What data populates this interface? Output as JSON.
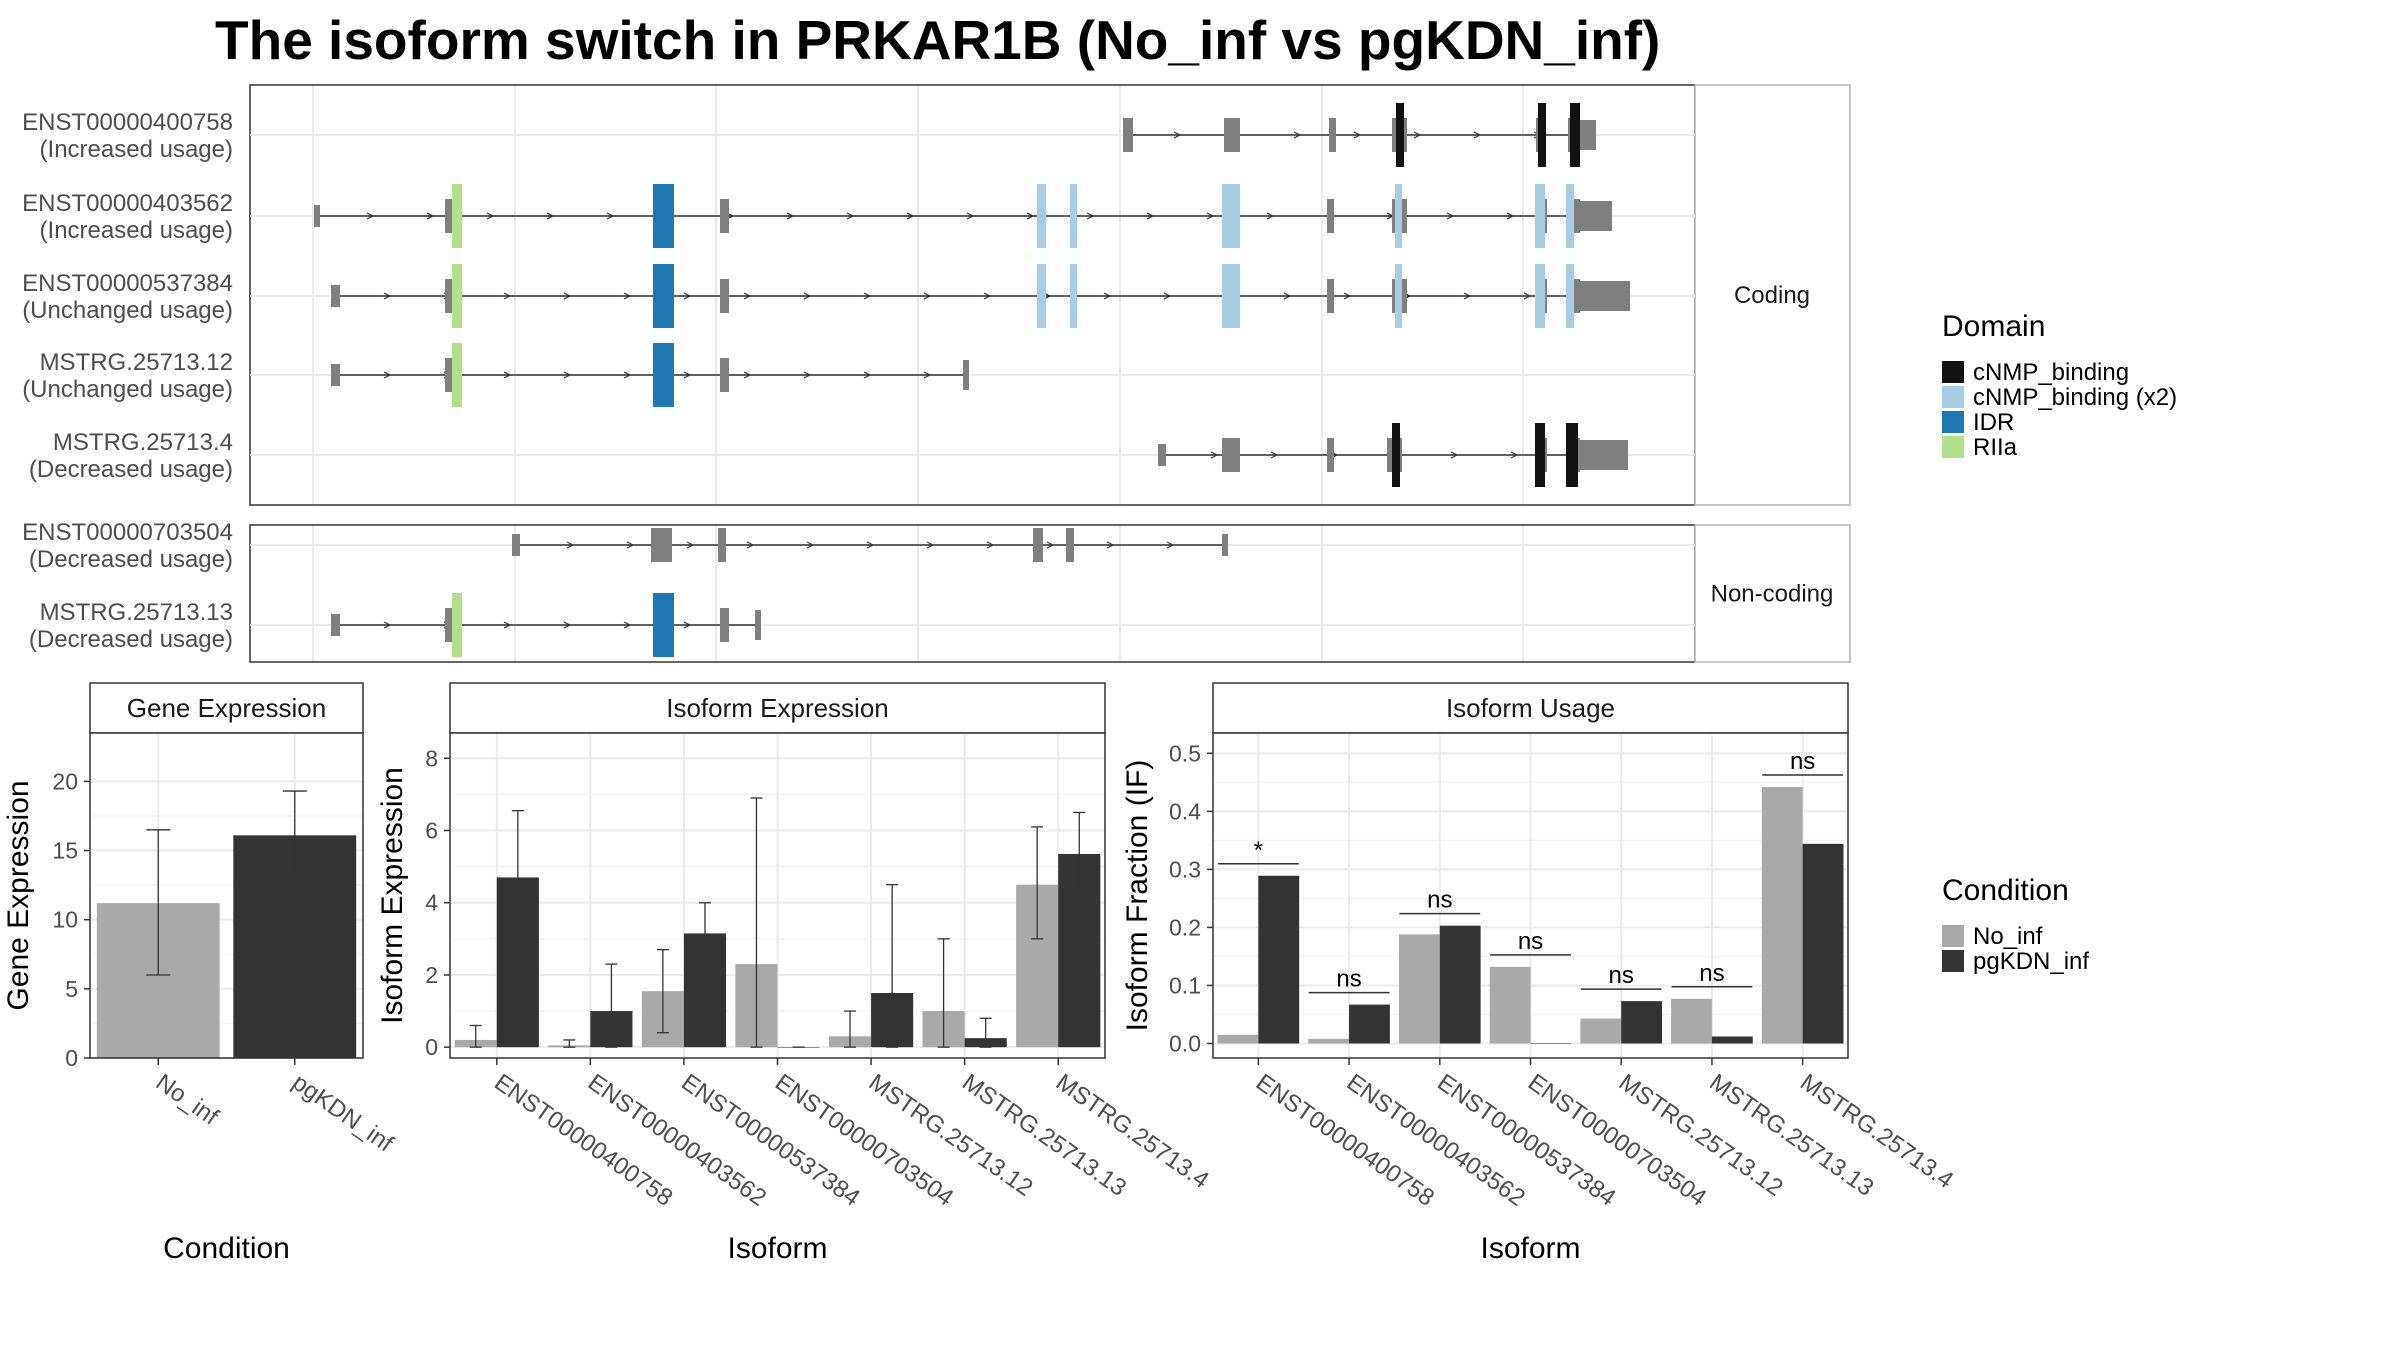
{
  "title": "The isoform switch in PRKAR1B (No_inf vs pgKDN_inf)",
  "colors": {
    "cNMP_binding": "#111111",
    "cNMP_binding_x2": "#a6cee3",
    "IDR": "#1f78b4",
    "RIIa": "#b2df8a",
    "exon": "#7f7f7f",
    "No_inf": "#a9a9a9",
    "pgKDN_inf": "#333333"
  },
  "structure": {
    "facets": [
      "Coding",
      "Non-coding"
    ],
    "transcripts": [
      {
        "id": "ENST00000400758",
        "usage": "(Increased usage)",
        "group": "Coding"
      },
      {
        "id": "ENST00000403562",
        "usage": "(Increased usage)",
        "group": "Coding"
      },
      {
        "id": "ENST00000537384",
        "usage": "(Unchanged usage)",
        "group": "Coding"
      },
      {
        "id": "MSTRG.25713.12",
        "usage": "(Unchanged usage)",
        "group": "Coding"
      },
      {
        "id": "MSTRG.25713.4",
        "usage": "(Decreased usage)",
        "group": "Coding"
      },
      {
        "id": "ENST00000703504",
        "usage": "(Decreased usage)",
        "group": "Non-coding"
      },
      {
        "id": "MSTRG.25713.13",
        "usage": "(Decreased usage)",
        "group": "Non-coding"
      }
    ]
  },
  "legend_domain": {
    "title": "Domain",
    "items": [
      {
        "label": "cNMP_binding",
        "color": "#111111"
      },
      {
        "label": "cNMP_binding (x2)",
        "color": "#a6cee3"
      },
      {
        "label": "IDR",
        "color": "#1f78b4"
      },
      {
        "label": "RIIa",
        "color": "#b2df8a"
      }
    ]
  },
  "legend_condition": {
    "title": "Condition",
    "items": [
      {
        "label": "No_inf",
        "color": "#a9a9a9"
      },
      {
        "label": "pgKDN_inf",
        "color": "#333333"
      }
    ]
  },
  "chart_data": [
    {
      "type": "bar",
      "title": "Gene Expression",
      "xlabel": "Condition",
      "ylabel": "Gene Expression",
      "categories": [
        "No_inf",
        "pgKDN_inf"
      ],
      "values": [
        11.2,
        16.1
      ],
      "errors": [
        [
          6.0,
          16.5
        ],
        [
          13.0,
          19.3
        ]
      ],
      "colors": [
        "#a9a9a9",
        "#333333"
      ],
      "ylim": [
        0,
        23.5
      ],
      "yticks": [
        0,
        5,
        10,
        15,
        20
      ]
    },
    {
      "type": "bar",
      "title": "Isoform Expression",
      "xlabel": "Isoform",
      "ylabel": "Isoform Expression",
      "categories": [
        "ENST00000400758",
        "ENST00000403562",
        "ENST00000537384",
        "ENST00000703504",
        "MSTRG.25713.12",
        "MSTRG.25713.13",
        "MSTRG.25713.4"
      ],
      "series": [
        {
          "name": "No_inf",
          "values": [
            0.2,
            0.05,
            1.55,
            2.3,
            0.3,
            1.0,
            4.5
          ],
          "errors": [
            [
              0.0,
              0.6
            ],
            [
              0.0,
              0.2
            ],
            [
              0.4,
              2.7
            ],
            [
              0.0,
              6.9
            ],
            [
              0.0,
              1.0
            ],
            [
              0.0,
              3.0
            ],
            [
              3.0,
              6.1
            ]
          ]
        },
        {
          "name": "pgKDN_inf",
          "values": [
            4.7,
            1.0,
            3.15,
            0.0,
            1.5,
            0.25,
            5.35
          ],
          "errors": [
            [
              2.9,
              6.55
            ],
            [
              0.0,
              2.3
            ],
            [
              2.3,
              4.0
            ],
            [
              0.0,
              0.0
            ],
            [
              0.0,
              4.5
            ],
            [
              0.0,
              0.8
            ],
            [
              4.3,
              6.5
            ]
          ]
        }
      ],
      "ylim": [
        -0.3,
        8.7
      ],
      "yticks": [
        0,
        2,
        4,
        6,
        8
      ]
    },
    {
      "type": "bar",
      "title": "Isoform Usage",
      "xlabel": "Isoform",
      "ylabel": "Isoform Fraction (IF)",
      "categories": [
        "ENST00000400758",
        "ENST00000403562",
        "ENST00000537384",
        "ENST00000703504",
        "MSTRG.25713.12",
        "MSTRG.25713.13",
        "MSTRG.25713.4"
      ],
      "series": [
        {
          "name": "No_inf",
          "values": [
            0.015,
            0.008,
            0.188,
            0.132,
            0.043,
            0.077,
            0.442
          ]
        },
        {
          "name": "pgKDN_inf",
          "values": [
            0.289,
            0.067,
            0.203,
            0.0,
            0.073,
            0.012,
            0.344
          ]
        }
      ],
      "significance": [
        "*",
        "ns",
        "ns",
        "ns",
        "ns",
        "ns",
        "ns"
      ],
      "ylim": [
        -0.025,
        0.535
      ],
      "yticks": [
        0.0,
        0.1,
        0.2,
        0.3,
        0.4,
        0.5
      ]
    }
  ]
}
